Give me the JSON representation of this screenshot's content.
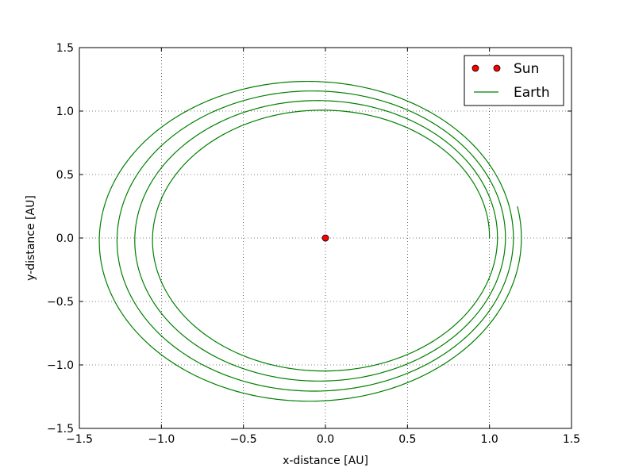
{
  "chart_data": {
    "type": "line",
    "title": "",
    "xlabel": "x-distance [AU]",
    "ylabel": "y-distance [AU]",
    "xlim": [
      -1.5,
      1.5
    ],
    "ylim": [
      -1.5,
      1.5
    ],
    "grid": true,
    "legend_position": "upper-right",
    "xticks": [
      "−1.5",
      "−1.0",
      "−0.5",
      "0.0",
      "0.5",
      "1.0",
      "1.5"
    ],
    "yticks": [
      "1.5",
      "1.0",
      "0.5",
      "0.0",
      "−0.5",
      "−1.0",
      "−1.5"
    ],
    "series": [
      {
        "name": "Sun",
        "kind": "marker",
        "color": "#ff0000",
        "points": [
          [
            0.0,
            0.0
          ]
        ]
      },
      {
        "name": "Earth",
        "kind": "line",
        "color": "#008000",
        "start": [
          1.0,
          0.0
        ],
        "end": [
          1.29,
          0.26
        ],
        "turns": 4,
        "x_extent_at_y0": [
          -1.26,
          1.29
        ],
        "y_extent_at_x0": [
          -1.29,
          1.23
        ]
      }
    ]
  }
}
